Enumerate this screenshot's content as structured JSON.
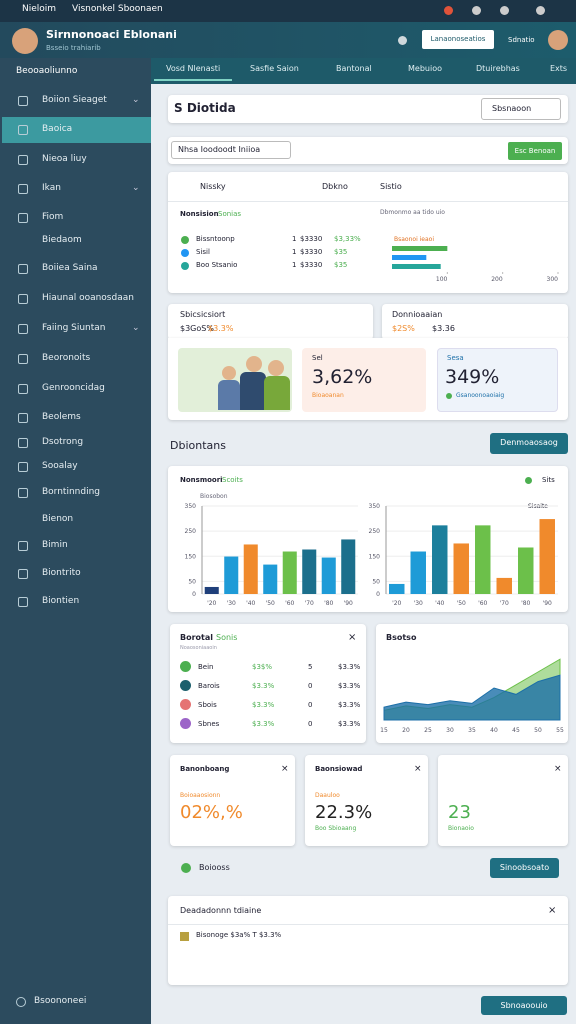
{
  "status": {
    "app": "Nieloim",
    "title": "Visnonkel Sboonaen"
  },
  "header": {
    "title": "Sirnnonoaci Eblonani",
    "subtitle": "Bsseio trahiarib",
    "button": "Lanaonoseatios",
    "user": "Sdnatio"
  },
  "sidebar": {
    "heading": "Beooaoliunno",
    "items": [
      "Boiion Sieaget",
      "Baoica",
      "Nieoa liuy",
      "Ikan",
      "Fiom",
      "Biedaom",
      "Boiiea Saina",
      "Hiaunal ooanosdaan",
      "Faiing Siuntan",
      "Beoronoits",
      "Genrooncidag",
      "Beolems",
      "Dsotrong",
      "Sooalay",
      "Borntinnding",
      "Bienon",
      "Bimin",
      "Biontrito",
      "Biontien"
    ],
    "footer": "Bsoononeei"
  },
  "tabs": [
    "Vosd Nlenasti",
    "Sasfie Saion",
    "Bantonal",
    "Mebuioo",
    "Dtuirebhas",
    "Exts"
  ],
  "overview": {
    "title": "S Diotida",
    "select": "Sbsnaoon"
  },
  "filter": {
    "select": "Nhsa Ioodoodt Iniioa",
    "button": "Esc Benoan"
  },
  "summary": {
    "headers": [
      "Nissky",
      "Dbkno",
      "Sistio"
    ],
    "subtitle": "Nonsision",
    "subtitle_tag": "Sonias",
    "note": "Dbmonmo aa tido uio",
    "rows": [
      [
        "Bissntoonp",
        "1",
        "$3330",
        "$3,33%"
      ],
      [
        "Sisil",
        "1",
        "$3330",
        "$35"
      ],
      [
        "Boo Stsanio",
        "1",
        "$3330",
        "$35"
      ]
    ],
    "chart": {
      "type": "bar",
      "orientation": "horizontal",
      "title": "Bsaonoi ieaoi",
      "values": [
        100,
        62,
        88
      ],
      "colors": [
        "#4caf50",
        "#2196f3",
        "#26a69a"
      ],
      "xlim": [
        0,
        300
      ],
      "xticks": [
        100,
        200,
        300
      ]
    }
  },
  "stats": {
    "left_title": "Sbicsicsiort",
    "left_sub": "$3GoS%",
    "left_sub_hl": "$3.3%",
    "right_title": "Donnioaaian",
    "right_sub": "$2S%",
    "right_sub_hl": "$3.36",
    "box1_label": "Sel",
    "box1_value": "3,62%",
    "box1_sub": "Bioaoanan",
    "box2_label": "Sesa",
    "box2_value": "349%",
    "box2_sub": "Gsanoonoaoiaig"
  },
  "section": {
    "title": "Dbiontans",
    "button": "Denmoaosaog"
  },
  "charts": {
    "title": "Nonsmoori",
    "title_tag": "Scoits",
    "subtitle": "Biosobon",
    "side": "Sits",
    "left": {
      "type": "bar",
      "ylim": [
        0,
        350
      ],
      "yticks": [
        0,
        50,
        150,
        250,
        350
      ],
      "categories": [
        "'20",
        "'30",
        "'40",
        "'50",
        "'60",
        "'70",
        "'80",
        "'90"
      ],
      "values": [
        28,
        149,
        197,
        117,
        169,
        177,
        145,
        217
      ],
      "colors": [
        "#1f3f7a",
        "#1e9bd7",
        "#f08a2c",
        "#1e9bd7",
        "#6cc04a",
        "#1c6f8c",
        "#1e9bd7",
        "#1c6f8c"
      ]
    },
    "right": {
      "type": "bar",
      "title": "Sisaite",
      "ylim": [
        0,
        350
      ],
      "yticks": [
        0,
        50,
        150,
        250,
        350
      ],
      "categories": [
        "'20",
        "'30",
        "'40",
        "'50",
        "'60",
        "'70",
        "'80",
        "'90"
      ],
      "values": [
        40,
        169,
        273,
        201,
        273,
        64,
        185,
        298
      ],
      "colors": [
        "#1e9bd7",
        "#1e9bd7",
        "#1c7f9c",
        "#f08a2c",
        "#6cc04a",
        "#f08a2c",
        "#6cc04a",
        "#f08a2c"
      ]
    }
  },
  "list": {
    "title": "Borotal",
    "title_tag": "Sonis",
    "subtitle": "Noaosoniaaoin",
    "rows": [
      [
        "Bein",
        "$3$%",
        "5",
        "$3.3%"
      ],
      [
        "Barois",
        "$3.3%",
        "0",
        "$3.3%"
      ],
      [
        "Sbois",
        "$3.3%",
        "0",
        "$3.3%"
      ],
      [
        "Sbnes",
        "$3.3%",
        "0",
        "$3.3%"
      ]
    ],
    "colors": [
      "#4caf50",
      "#1c5f6c",
      "#e57373",
      "#9c64c8"
    ]
  },
  "area": {
    "type": "area",
    "title": "Bsotso",
    "ylim": [
      0,
      100
    ],
    "categories": [
      "15",
      "20",
      "25",
      "30",
      "35",
      "40",
      "45",
      "50",
      "55"
    ],
    "series": [
      {
        "color": "#1c6fa8",
        "values": [
          20,
          28,
          24,
          30,
          26,
          50,
          40,
          60,
          70
        ]
      },
      {
        "color": "#6cc04a",
        "values": [
          15,
          22,
          18,
          24,
          20,
          35,
          55,
          75,
          95
        ]
      }
    ]
  },
  "kpis": [
    {
      "title": "Banonboang",
      "sub": "Boioaaosionn",
      "value": "02%,%",
      "color": "#f08a2c"
    },
    {
      "title": "Baonsiowad",
      "sub": "Daauloo",
      "value": "22.3%",
      "note": "Boo Sbioaang",
      "color": "#222"
    },
    {
      "value": "23",
      "note": "Bionaoio",
      "color": "#4caf50"
    }
  ],
  "status_row": {
    "label": "Boiooss",
    "button": "Sinoobsoato"
  },
  "footer_card": {
    "title": "Deadadonnn tdiaine",
    "row": "Bisonoge $3a% T $3.3%"
  },
  "bottom_button": "Sbnoaoouio"
}
